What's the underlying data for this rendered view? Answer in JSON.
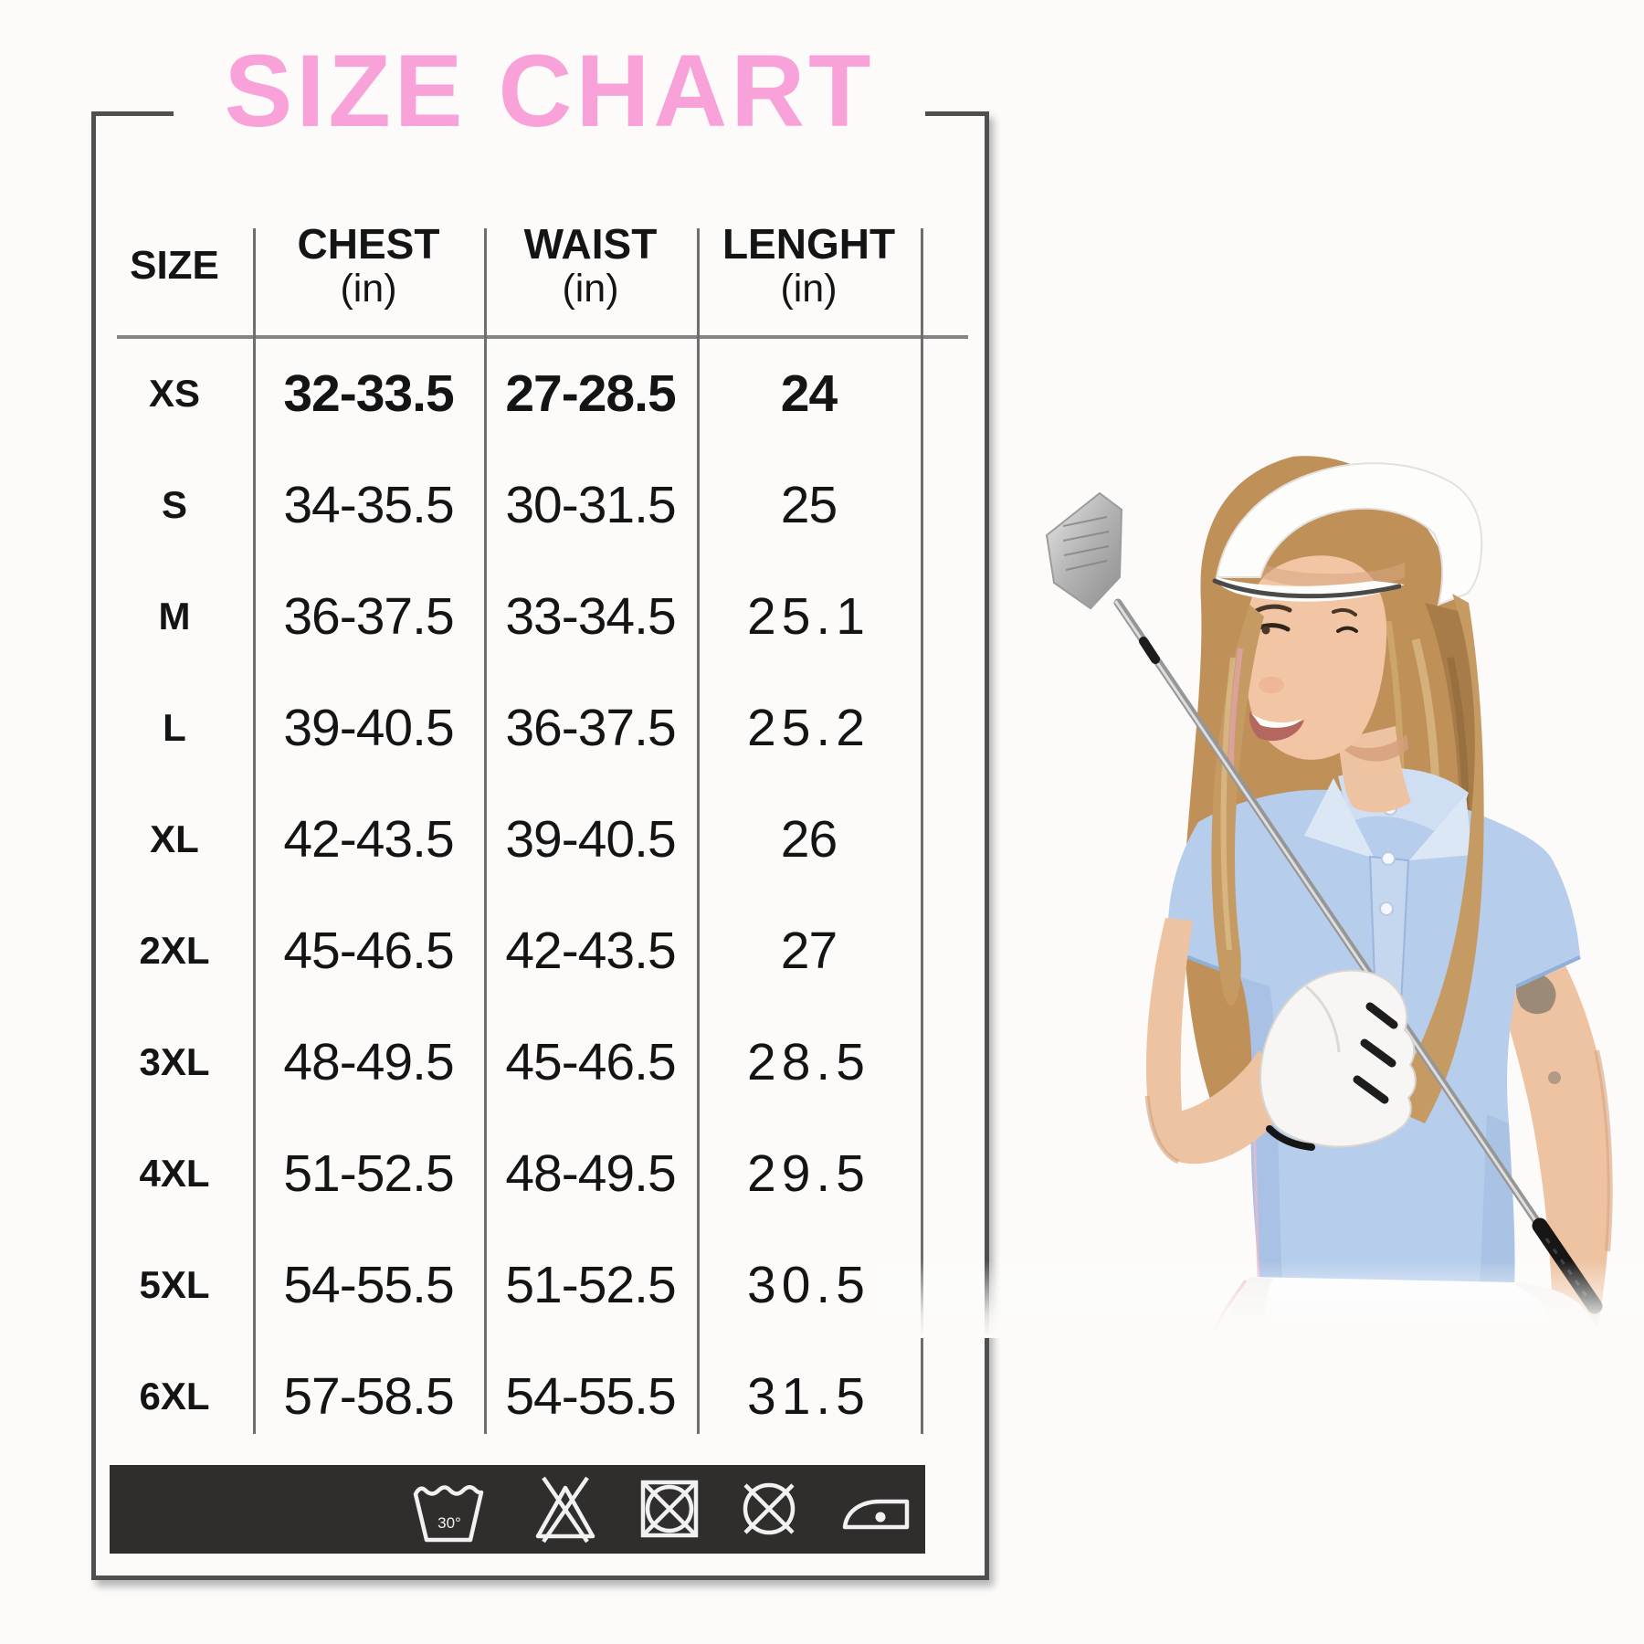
{
  "title": {
    "text": "SIZE CHART"
  },
  "colors": {
    "title_pink": "#f9a2d9",
    "frame_gray": "#4f4f4f",
    "care_bar_background": "#302d2d",
    "polo_blue": "#b6cdec"
  },
  "size_table": {
    "columns": [
      {
        "label": "SIZE",
        "unit": ""
      },
      {
        "label": "CHEST",
        "unit": "(in)"
      },
      {
        "label": "WAIST",
        "unit": "(in)"
      },
      {
        "label": "LENGHT",
        "unit": "(in)"
      }
    ],
    "rows": [
      {
        "size": "XS",
        "chest": "32-33.5",
        "waist": "27-28.5",
        "length": "24",
        "emphasis": true
      },
      {
        "size": "S",
        "chest": "34-35.5",
        "waist": "30-31.5",
        "length": "25",
        "emphasis": false
      },
      {
        "size": "M",
        "chest": "36-37.5",
        "waist": "33-34.5",
        "length": "25.1",
        "emphasis": false
      },
      {
        "size": "L",
        "chest": "39-40.5",
        "waist": "36-37.5",
        "length": "25.2",
        "emphasis": false
      },
      {
        "size": "XL",
        "chest": "42-43.5",
        "waist": "39-40.5",
        "length": "26",
        "emphasis": false
      },
      {
        "size": "2XL",
        "chest": "45-46.5",
        "waist": "42-43.5",
        "length": "27",
        "emphasis": false
      },
      {
        "size": "3XL",
        "chest": "48-49.5",
        "waist": "45-46.5",
        "length": "28.5",
        "emphasis": false
      },
      {
        "size": "4XL",
        "chest": "51-52.5",
        "waist": "48-49.5",
        "length": "29.5",
        "emphasis": false
      },
      {
        "size": "5XL",
        "chest": "54-55.5",
        "waist": "51-52.5",
        "length": "30.5",
        "emphasis": false
      },
      {
        "size": "6XL",
        "chest": "57-58.5",
        "waist": "54-55.5",
        "length": "31.5",
        "emphasis": false
      }
    ]
  },
  "care_bar": {
    "icons": [
      {
        "name": "wash-30-icon",
        "label": "30°"
      },
      {
        "name": "do-not-bleach-icon",
        "label": ""
      },
      {
        "name": "do-not-tumble-dry-icon",
        "label": ""
      },
      {
        "name": "do-not-dry-clean-icon",
        "label": ""
      },
      {
        "name": "iron-low-heat-icon",
        "label": ""
      }
    ]
  },
  "photo": {
    "description": "Woman golfer wearing a white sun visor and light blue polo, holding a golf club"
  }
}
